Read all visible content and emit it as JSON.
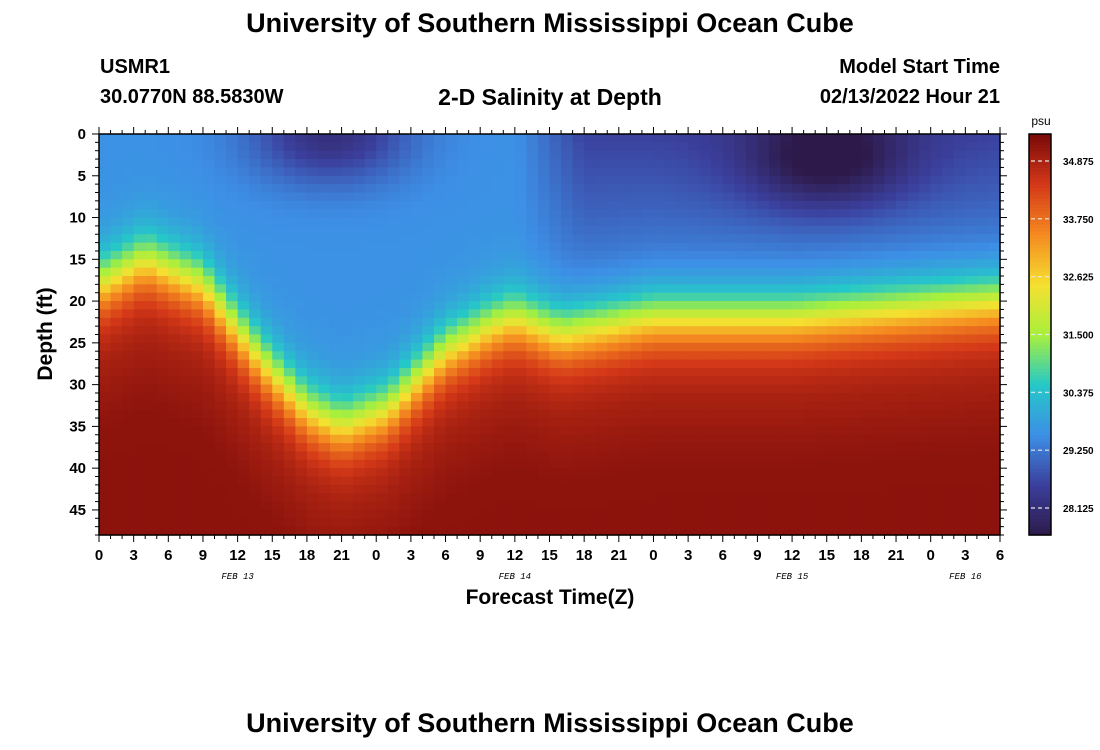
{
  "header": {
    "title": "University of Southern Mississippi Ocean Cube",
    "station_id": "USMR1",
    "station_coords": "30.0770N  88.5830W",
    "subtitle": "2-D Salinity at Depth",
    "model_label": "Model Start Time",
    "model_time": "02/13/2022 Hour 21"
  },
  "footer": {
    "title": "University of Southern Mississippi Ocean Cube"
  },
  "chart_data": {
    "type": "heatmap",
    "title": "2-D Salinity at Depth",
    "xlabel": "Forecast Time(Z)",
    "ylabel": "Depth (ft)",
    "x_unit": "hours",
    "x_tick_labels": [
      "0",
      "3",
      "6",
      "9",
      "12",
      "15",
      "18",
      "21",
      "0",
      "3",
      "6",
      "9",
      "12",
      "15",
      "18",
      "21",
      "0",
      "3",
      "6",
      "9",
      "12",
      "15",
      "18",
      "21",
      "0",
      "3",
      "6"
    ],
    "x_hours": [
      0,
      3,
      6,
      9,
      12,
      15,
      18,
      21,
      24,
      27,
      30,
      33,
      36,
      39,
      42,
      45,
      48,
      51,
      54,
      57,
      60,
      63,
      66,
      69,
      72,
      75,
      78
    ],
    "xlim": [
      0,
      78
    ],
    "date_labels": [
      {
        "text": "FEB 13",
        "hour": 12
      },
      {
        "text": "FEB 14",
        "hour": 36
      },
      {
        "text": "FEB 15",
        "hour": 60
      },
      {
        "text": "FEB 16",
        "hour": 75
      }
    ],
    "y_ticks": [
      0,
      5,
      10,
      15,
      20,
      25,
      30,
      35,
      40,
      45
    ],
    "ylim": [
      0,
      48
    ],
    "y_reversed": true,
    "colorbar": {
      "unit": "psu",
      "range": [
        27.6,
        35.4
      ],
      "tick_values": [
        34.875,
        33.75,
        32.625,
        31.5,
        30.375,
        29.25,
        28.125
      ],
      "tick_labels": [
        "34.875",
        "33.750",
        "32.625",
        "31.500",
        "30.375",
        "29.250",
        "28.125"
      ],
      "colors": [
        "#2e1a4a",
        "#3b3f9c",
        "#3d8fe6",
        "#25c8c8",
        "#a8f03c",
        "#f5e030",
        "#f58a20",
        "#d43818",
        "#7a0a0a"
      ]
    },
    "fresh_to_saline_boundary_depth_ft": [
      {
        "hour": 0,
        "depth": 18
      },
      {
        "hour": 4,
        "depth": 15
      },
      {
        "hour": 9,
        "depth": 18
      },
      {
        "hour": 14,
        "depth": 27
      },
      {
        "hour": 18,
        "depth": 33
      },
      {
        "hour": 21,
        "depth": 35
      },
      {
        "hour": 25,
        "depth": 33
      },
      {
        "hour": 30,
        "depth": 26
      },
      {
        "hour": 34,
        "depth": 23
      },
      {
        "hour": 36,
        "depth": 22
      },
      {
        "hour": 40,
        "depth": 24
      },
      {
        "hour": 48,
        "depth": 22
      },
      {
        "hour": 60,
        "depth": 22
      },
      {
        "hour": 78,
        "depth": 20
      }
    ],
    "low_salinity_cores": [
      {
        "hour": 20,
        "depth": 0,
        "value": 28.1
      },
      {
        "hour": 63,
        "depth": 3,
        "value": 28.1
      }
    ]
  }
}
